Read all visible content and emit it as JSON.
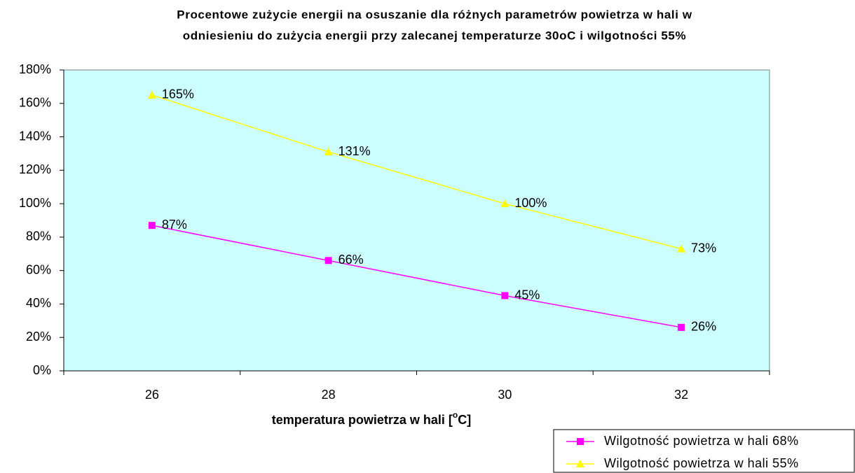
{
  "chart_data": {
    "type": "line",
    "title": [
      "Procentowe zużycie energii na osuszanie dla różnych parametrów powietrza w hali w",
      "odniesieniu do zużycia energii przy zalecanej temperaturze 30oC i wilgotności 55%"
    ],
    "xlabel": [
      "temperatura powietrza w hali [",
      "o",
      "C]"
    ],
    "categories": [
      "26",
      "28",
      "30",
      "32"
    ],
    "series": [
      {
        "name": "Wilgotność powietrza w hali 68%",
        "color": "#ff00ff",
        "marker": "square",
        "values": [
          87,
          66,
          45,
          26
        ],
        "value_labels": [
          "87%",
          "66%",
          "45%",
          "26%"
        ]
      },
      {
        "name": "Wilgotność powietrza w hali 55%",
        "color": "#ffff00",
        "marker": "triangle",
        "values": [
          165,
          131,
          100,
          73
        ],
        "value_labels": [
          "165%",
          "131%",
          "100%",
          "73%"
        ]
      }
    ],
    "ylim": [
      0,
      180
    ],
    "yticks": [
      {
        "value": 0,
        "label": "0%"
      },
      {
        "value": 20,
        "label": "20%"
      },
      {
        "value": 40,
        "label": "40%"
      },
      {
        "value": 60,
        "label": "60%"
      },
      {
        "value": 80,
        "label": "80%"
      },
      {
        "value": 100,
        "label": "100%"
      },
      {
        "value": 120,
        "label": "120%"
      },
      {
        "value": 140,
        "label": "140%"
      },
      {
        "value": 160,
        "label": "160%"
      },
      {
        "value": 180,
        "label": "180%"
      }
    ],
    "plot_background": "#ccffff",
    "legend": "bottom-right"
  }
}
